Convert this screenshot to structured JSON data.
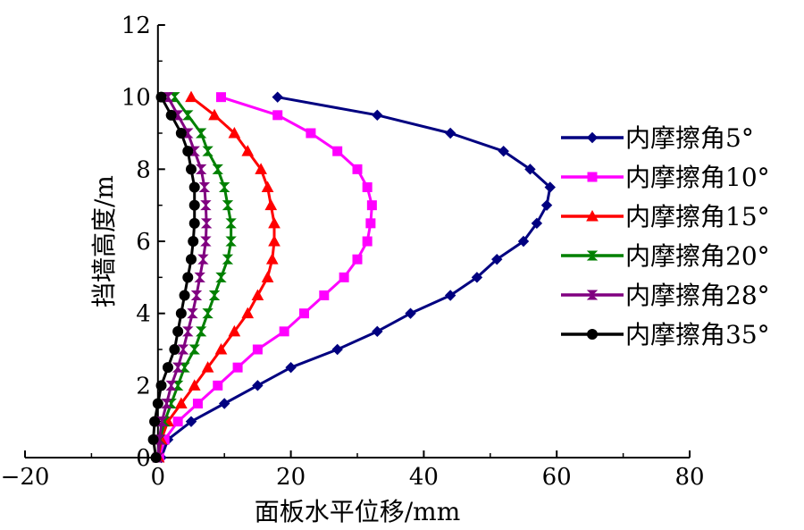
{
  "chart_data": {
    "type": "line",
    "title": "",
    "xlabel": "面板水平位移/mm",
    "ylabel": "挡墙高度/m",
    "xlim": [
      -20,
      80
    ],
    "ylim": [
      0,
      12
    ],
    "xticks": [
      -20,
      0,
      20,
      40,
      60,
      80
    ],
    "yticks": [
      0,
      2,
      4,
      6,
      8,
      10,
      12
    ],
    "xtick_labels": [
      "−20",
      "0",
      "20",
      "40",
      "60",
      "80"
    ],
    "ytick_labels": [
      "0",
      "2",
      "4",
      "6",
      "8",
      "10",
      "12"
    ],
    "grid": false,
    "legend_position": "right",
    "series": [
      {
        "name": "内摩擦角5°",
        "color": "#000080",
        "marker": "diamond",
        "points": [
          [
            0.5,
            0
          ],
          [
            1.5,
            0.5
          ],
          [
            5,
            1
          ],
          [
            10,
            1.5
          ],
          [
            15,
            2
          ],
          [
            20,
            2.5
          ],
          [
            27,
            3
          ],
          [
            33,
            3.5
          ],
          [
            38,
            4
          ],
          [
            44,
            4.5
          ],
          [
            48,
            5
          ],
          [
            51,
            5.5
          ],
          [
            55,
            6
          ],
          [
            57,
            6.5
          ],
          [
            58.5,
            7
          ],
          [
            59,
            7.5
          ],
          [
            56,
            8
          ],
          [
            52,
            8.5
          ],
          [
            44,
            9
          ],
          [
            33,
            9.5
          ],
          [
            18,
            10
          ]
        ]
      },
      {
        "name": "内摩擦角10°",
        "color": "#ff00ff",
        "marker": "square",
        "points": [
          [
            0.2,
            0
          ],
          [
            1,
            0.5
          ],
          [
            3,
            1
          ],
          [
            6,
            1.5
          ],
          [
            9,
            2
          ],
          [
            12,
            2.5
          ],
          [
            15,
            3
          ],
          [
            19,
            3.5
          ],
          [
            22,
            4
          ],
          [
            25,
            4.5
          ],
          [
            28,
            5
          ],
          [
            30,
            5.5
          ],
          [
            31.5,
            6
          ],
          [
            32,
            6.5
          ],
          [
            32.2,
            7
          ],
          [
            31.5,
            7.5
          ],
          [
            30,
            8
          ],
          [
            27,
            8.5
          ],
          [
            23,
            9
          ],
          [
            18,
            9.5
          ],
          [
            9.5,
            10
          ]
        ]
      },
      {
        "name": "内摩擦角15°",
        "color": "#ff0000",
        "marker": "triangle",
        "points": [
          [
            0.1,
            0
          ],
          [
            0.5,
            0.5
          ],
          [
            1.5,
            1
          ],
          [
            3.5,
            1.5
          ],
          [
            5.5,
            2
          ],
          [
            7.5,
            2.5
          ],
          [
            9.5,
            3
          ],
          [
            11.5,
            3.5
          ],
          [
            13.5,
            4
          ],
          [
            15,
            4.5
          ],
          [
            16.5,
            5
          ],
          [
            17.2,
            5.5
          ],
          [
            17.5,
            6
          ],
          [
            17.5,
            6.5
          ],
          [
            17,
            7
          ],
          [
            16.5,
            7.5
          ],
          [
            15.5,
            8
          ],
          [
            13.5,
            8.5
          ],
          [
            11.5,
            9
          ],
          [
            8.5,
            9.5
          ],
          [
            5,
            10
          ]
        ]
      },
      {
        "name": "内摩擦角20°",
        "color": "#008000",
        "marker": "bowtie",
        "points": [
          [
            0,
            0
          ],
          [
            0.3,
            0.5
          ],
          [
            1,
            1
          ],
          [
            2,
            1.5
          ],
          [
            3,
            2
          ],
          [
            4,
            2.5
          ],
          [
            5.5,
            3
          ],
          [
            6.5,
            3.5
          ],
          [
            7.5,
            4
          ],
          [
            8.5,
            4.5
          ],
          [
            9.5,
            5
          ],
          [
            10.5,
            5.5
          ],
          [
            11,
            6
          ],
          [
            11,
            6.5
          ],
          [
            10.5,
            7
          ],
          [
            10,
            7.5
          ],
          [
            9,
            8
          ],
          [
            7.5,
            8.5
          ],
          [
            6.5,
            9
          ],
          [
            4.5,
            9.5
          ],
          [
            2.5,
            10
          ]
        ]
      },
      {
        "name": "内摩擦角28°",
        "color": "#800080",
        "marker": "bowtie",
        "points": [
          [
            0,
            0
          ],
          [
            0.2,
            0.5
          ],
          [
            0.6,
            1
          ],
          [
            1.3,
            1.5
          ],
          [
            2,
            2
          ],
          [
            3,
            2.5
          ],
          [
            3.8,
            3
          ],
          [
            4.5,
            3.5
          ],
          [
            5.2,
            4
          ],
          [
            5.8,
            4.5
          ],
          [
            6.3,
            5
          ],
          [
            6.8,
            5.5
          ],
          [
            7.2,
            6
          ],
          [
            7.3,
            6.5
          ],
          [
            7.2,
            7
          ],
          [
            7,
            7.5
          ],
          [
            6.5,
            8
          ],
          [
            5.5,
            8.5
          ],
          [
            4.5,
            9
          ],
          [
            3,
            9.5
          ],
          [
            1.5,
            10
          ]
        ]
      },
      {
        "name": "内摩擦角35°",
        "color": "#000000",
        "marker": "circle",
        "points": [
          [
            -0.3,
            0
          ],
          [
            -0.7,
            0.5
          ],
          [
            -0.5,
            1
          ],
          [
            0,
            1.5
          ],
          [
            0.5,
            2
          ],
          [
            1.5,
            2.5
          ],
          [
            2.5,
            3
          ],
          [
            3,
            3.5
          ],
          [
            3.5,
            4
          ],
          [
            4,
            4.5
          ],
          [
            4.5,
            5
          ],
          [
            5,
            5.5
          ],
          [
            5.3,
            6
          ],
          [
            5.5,
            6.5
          ],
          [
            5.5,
            7
          ],
          [
            5.5,
            7.5
          ],
          [
            5,
            8
          ],
          [
            4.5,
            8.5
          ],
          [
            3.5,
            9
          ],
          [
            2,
            9.5
          ],
          [
            0.5,
            10
          ]
        ]
      }
    ]
  }
}
